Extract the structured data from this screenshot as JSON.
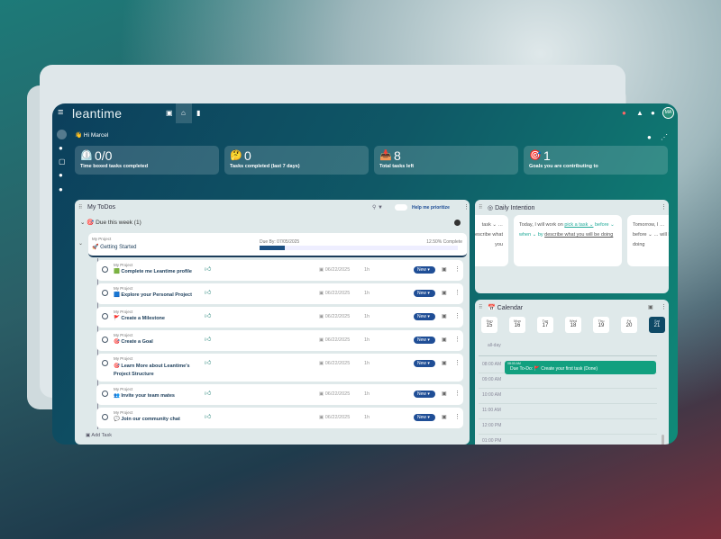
{
  "header": {
    "logo": "leantime",
    "avatar": "MA"
  },
  "greeting": "👋 Hi Marcel",
  "stats": [
    {
      "icon": "⏲️",
      "value": "0/0",
      "label": "Time boxed tasks completed"
    },
    {
      "icon": "🤔",
      "value": "0",
      "label": "Tasks completed (last 7 days)"
    },
    {
      "icon": "📥",
      "value": "8",
      "label": "Total tasks left"
    },
    {
      "icon": "🎯",
      "value": "1",
      "label": "Goals you are contributing to"
    }
  ],
  "todos": {
    "title": "My ToDos",
    "help": "Help me prioritize",
    "group": "Due this week (1)",
    "add_task": "Add Task",
    "milestone": {
      "project": "My Project",
      "title": "🚀 Getting Started",
      "due": "Due By: 07/05/2025",
      "complete": "12.50% Complete",
      "progress": 0.125
    },
    "tasks": [
      {
        "project": "My Project",
        "title": "🟩 Complete me Leantime profile",
        "date": "06/22/2025",
        "est": "1h",
        "status": "New"
      },
      {
        "project": "My Project",
        "title": "🟦 Explore your Personal Project",
        "date": "06/22/2025",
        "est": "1h",
        "status": "New"
      },
      {
        "project": "My Project",
        "title": "🚩 Create a Milestone",
        "date": "06/22/2025",
        "est": "1h",
        "status": "New"
      },
      {
        "project": "My Project",
        "title": "🎯 Create a Goal",
        "date": "06/22/2025",
        "est": "1h",
        "status": "New"
      },
      {
        "project": "My Project",
        "title": "🎯 Learn More about Leantime's Project Structure",
        "date": "06/22/2025",
        "est": "1h",
        "status": "New"
      },
      {
        "project": "My Project",
        "title": "👥 Invite your team mates",
        "date": "06/22/2025",
        "est": "1h",
        "status": "New"
      },
      {
        "project": "My Project",
        "title": "💬 Join our community chat",
        "date": "06/22/2025",
        "est": "1h",
        "status": "New"
      }
    ]
  },
  "intention": {
    "title": "Daily Intention",
    "left": "task ⌄ … describe what you",
    "center_a": "Today, I will work on",
    "center_task": "pick a task ⌄",
    "center_b": "before ⌄  when ⌄  by",
    "center_desc": "describe what you will be doing",
    "right": "Tomorrow, I … before ⌄ … will be doing"
  },
  "calendar": {
    "title": "Calendar",
    "all_day": "all-day",
    "days": [
      {
        "d": "Sun",
        "n": "15"
      },
      {
        "d": "Mon",
        "n": "16"
      },
      {
        "d": "Tue",
        "n": "17"
      },
      {
        "d": "Wed",
        "n": "18"
      },
      {
        "d": "Thu",
        "n": "19"
      },
      {
        "d": "Fri",
        "n": "20"
      },
      {
        "d": "Sat",
        "n": "21"
      }
    ],
    "times": [
      "08:00 AM",
      "09:00 AM",
      "10:00 AM",
      "11:00 AM",
      "12:00 PM",
      "01:00 PM"
    ],
    "event": {
      "time": "08:00 AM",
      "text": "Due To-Do: 🚩 Create your first task (Done)"
    }
  }
}
